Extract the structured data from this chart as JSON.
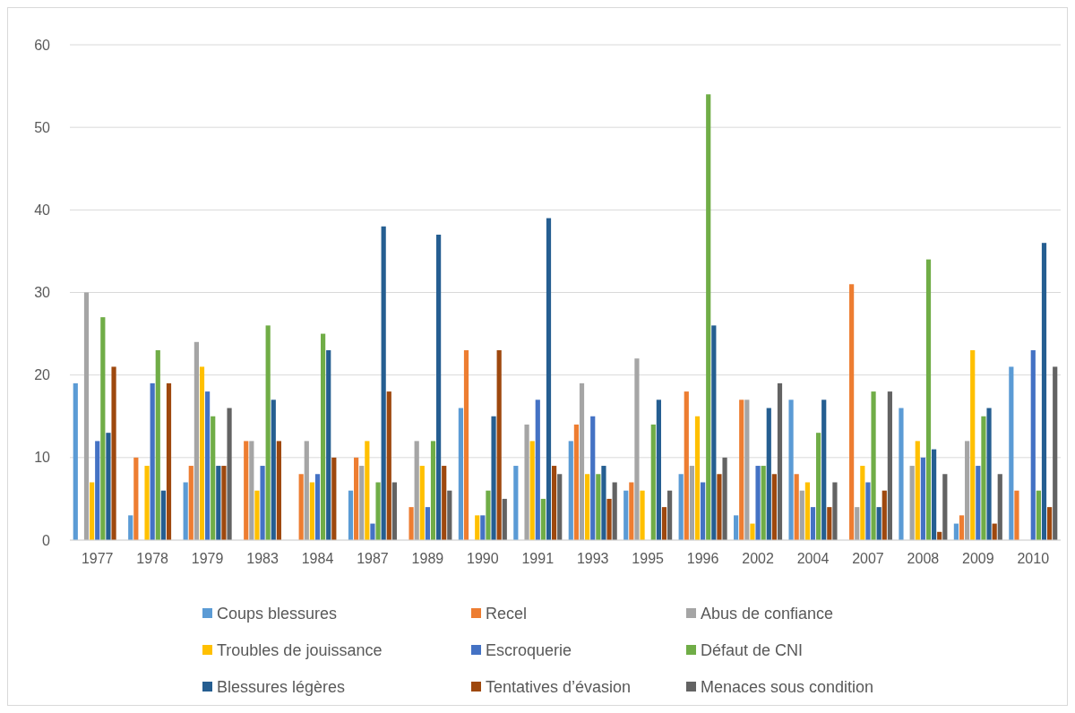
{
  "chart_data": {
    "type": "bar",
    "categories": [
      "1977",
      "1978",
      "1979",
      "1983",
      "1984",
      "1987",
      "1989",
      "1990",
      "1991",
      "1993",
      "1995",
      "1996",
      "2002",
      "2004",
      "2007",
      "2008",
      "2009",
      "2010"
    ],
    "series": [
      {
        "name": "Coups  blessures",
        "color": "#5b9bd5",
        "values": [
          19,
          3,
          7,
          null,
          null,
          6,
          null,
          16,
          9,
          12,
          6,
          8,
          3,
          17,
          null,
          16,
          2,
          21
        ]
      },
      {
        "name": "Recel",
        "color": "#ed7d31",
        "values": [
          null,
          10,
          9,
          12,
          8,
          10,
          4,
          23,
          null,
          14,
          7,
          18,
          17,
          8,
          31,
          null,
          3,
          6
        ]
      },
      {
        "name": "Abus de confiance",
        "color": "#a5a5a5",
        "values": [
          30,
          null,
          24,
          12,
          12,
          9,
          12,
          null,
          14,
          19,
          22,
          9,
          17,
          6,
          4,
          9,
          12,
          null
        ]
      },
      {
        "name": "Troubles de jouissance",
        "color": "#ffc000",
        "values": [
          7,
          9,
          21,
          6,
          7,
          12,
          9,
          3,
          12,
          8,
          6,
          15,
          2,
          7,
          9,
          12,
          23,
          null
        ]
      },
      {
        "name": "Escroquerie",
        "color": "#4472c4",
        "values": [
          12,
          19,
          18,
          9,
          8,
          2,
          4,
          3,
          17,
          15,
          null,
          7,
          9,
          4,
          7,
          10,
          9,
          23
        ]
      },
      {
        "name": "Défaut de CNI",
        "color": "#70ad47",
        "values": [
          27,
          23,
          15,
          26,
          25,
          7,
          12,
          6,
          5,
          8,
          14,
          54,
          9,
          13,
          18,
          34,
          15,
          6
        ]
      },
      {
        "name": "Blessures légères",
        "color": "#255e91",
        "values": [
          13,
          6,
          9,
          17,
          23,
          38,
          37,
          15,
          39,
          9,
          17,
          26,
          16,
          17,
          4,
          11,
          16,
          36
        ]
      },
      {
        "name": "Tentatives d’évasion",
        "color": "#9e480e",
        "values": [
          21,
          19,
          9,
          12,
          10,
          18,
          9,
          23,
          9,
          5,
          4,
          8,
          8,
          4,
          6,
          1,
          2,
          4
        ]
      },
      {
        "name": "Menaces sous condition",
        "color": "#636363",
        "values": [
          null,
          null,
          16,
          null,
          null,
          7,
          6,
          5,
          8,
          7,
          6,
          10,
          19,
          7,
          18,
          8,
          8,
          21
        ]
      }
    ],
    "ylim": [
      0,
      60
    ],
    "yticks": [
      0,
      10,
      20,
      30,
      40,
      50,
      60
    ],
    "grid": "y",
    "legend": "bottom"
  }
}
